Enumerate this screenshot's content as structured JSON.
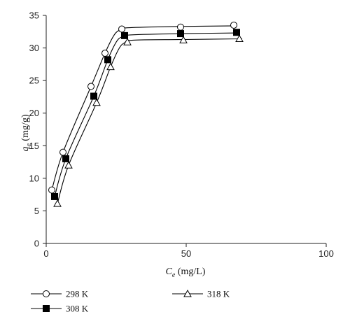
{
  "chart_data": {
    "type": "line",
    "xlabel": {
      "var": "C",
      "sub": "e",
      "unit": " (mg/L)"
    },
    "ylabel": {
      "var": "q",
      "sub": "e",
      "unit": " (mg/g)"
    },
    "xlim": [
      0,
      100
    ],
    "ylim": [
      0,
      35
    ],
    "xticks": [
      0,
      50,
      100
    ],
    "yticks": [
      0,
      5,
      10,
      15,
      20,
      25,
      30,
      35
    ],
    "grid": false,
    "legend_position": "bottom",
    "series": [
      {
        "name": "298 K",
        "marker": "open-circle",
        "color": "#000000",
        "points": [
          [
            2,
            8.2
          ],
          [
            6,
            14.0
          ],
          [
            16,
            24.1
          ],
          [
            21,
            29.2
          ],
          [
            27,
            32.9
          ],
          [
            48,
            33.2
          ],
          [
            67,
            33.5
          ]
        ],
        "fit": [
          [
            2,
            8.2
          ],
          [
            6,
            14.0
          ],
          [
            16,
            24.1
          ],
          [
            21,
            29.2
          ],
          [
            24,
            31.8
          ],
          [
            26,
            32.7
          ],
          [
            29,
            33.1
          ],
          [
            48,
            33.3
          ],
          [
            68,
            33.4
          ]
        ]
      },
      {
        "name": "308 K",
        "marker": "filled-square",
        "color": "#000000",
        "points": [
          [
            3,
            7.2
          ],
          [
            7,
            13.0
          ],
          [
            17,
            22.6
          ],
          [
            22,
            28.2
          ],
          [
            28,
            31.9
          ],
          [
            48,
            32.2
          ],
          [
            68,
            32.4
          ]
        ],
        "fit": [
          [
            3,
            7.2
          ],
          [
            7,
            13.0
          ],
          [
            17,
            22.6
          ],
          [
            22,
            28.2
          ],
          [
            25,
            30.9
          ],
          [
            27,
            31.7
          ],
          [
            30,
            32.0
          ],
          [
            48,
            32.2
          ],
          [
            69,
            32.3
          ]
        ]
      },
      {
        "name": "318 K",
        "marker": "open-triangle",
        "color": "#000000",
        "points": [
          [
            4,
            6.1
          ],
          [
            8,
            12.0
          ],
          [
            18,
            21.6
          ],
          [
            23,
            27.1
          ],
          [
            29,
            30.9
          ],
          [
            49,
            31.2
          ],
          [
            69,
            31.4
          ]
        ],
        "fit": [
          [
            4,
            6.1
          ],
          [
            8,
            12.0
          ],
          [
            18,
            21.6
          ],
          [
            23,
            27.1
          ],
          [
            26,
            29.9
          ],
          [
            28,
            30.8
          ],
          [
            31,
            31.2
          ],
          [
            49,
            31.3
          ],
          [
            70,
            31.4
          ]
        ]
      }
    ]
  }
}
